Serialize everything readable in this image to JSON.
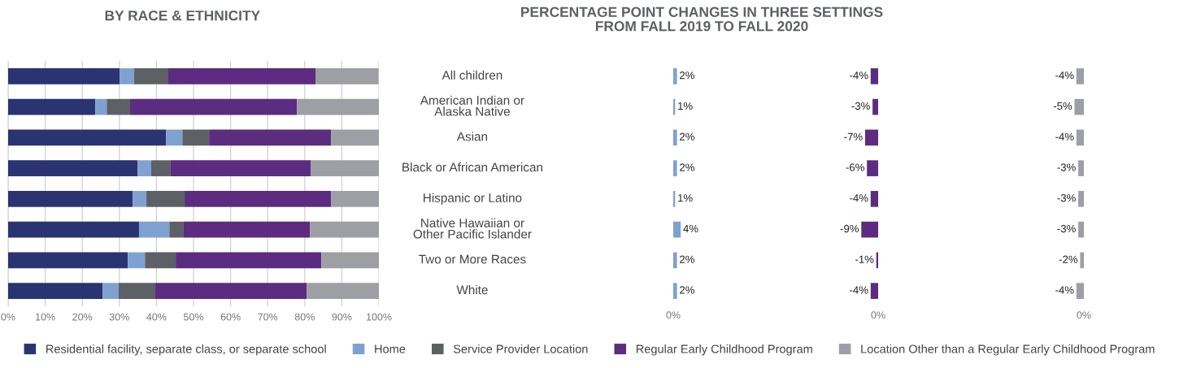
{
  "chart_data": [
    {
      "type": "bar",
      "orientation": "horizontal",
      "stacked": true,
      "title": "BY RACE & ETHNICITY",
      "categories": [
        "All children",
        "American Indian or\nAlaska Native",
        "Asian",
        "Black or African American",
        "Hispanic or Latino",
        "Native Hawaiian or\nOther Pacific Islander",
        "Two or More Races",
        "White"
      ],
      "series": [
        {
          "name": "Residential facility, separate class, or separate school",
          "color": "#2a3472",
          "values": [
            30.1,
            23.5,
            42.6,
            34.9,
            33.6,
            35.3,
            32.3,
            25.5
          ]
        },
        {
          "name": "Home",
          "color": "#7fa1d1",
          "values": [
            3.9,
            3.1,
            4.4,
            3.7,
            3.7,
            8.2,
            4.6,
            4.3
          ]
        },
        {
          "name": "Service Provider Location",
          "color": "#5d6064",
          "values": [
            9.2,
            6.3,
            7.2,
            5.1,
            10.3,
            3.7,
            8.3,
            9.9
          ]
        },
        {
          "name": "Regular Early Childhood Program",
          "color": "#5b2c7f",
          "values": [
            39.7,
            45.0,
            32.9,
            37.9,
            39.5,
            34.2,
            39.3,
            40.8
          ]
        },
        {
          "name": "Location Other than a Regular Early Childhood Program",
          "color": "#9d9fa5",
          "values": [
            17.0,
            22.1,
            12.9,
            18.4,
            12.9,
            18.6,
            15.5,
            19.5
          ]
        }
      ],
      "xlim": [
        0,
        100
      ],
      "xticks": [
        {
          "value": 0,
          "label": "0%"
        },
        {
          "value": 10,
          "label": "10%"
        },
        {
          "value": 20,
          "label": "20%"
        },
        {
          "value": 30,
          "label": "30%"
        },
        {
          "value": 40,
          "label": "40%"
        },
        {
          "value": 50,
          "label": "50%"
        },
        {
          "value": 60,
          "label": "60%"
        },
        {
          "value": 70,
          "label": "70%"
        },
        {
          "value": 80,
          "label": "80%"
        },
        {
          "value": 90,
          "label": "90%"
        },
        {
          "value": 100,
          "label": "100%"
        }
      ],
      "grid": "x",
      "legend": "bottom"
    },
    {
      "type": "bar",
      "orientation": "horizontal",
      "title": "PERCENTAGE POINT CHANGES IN THREE SETTINGS\nFROM FALL 2019 TO FALL 2020",
      "values": [
        2,
        1,
        2,
        2,
        1,
        4,
        2,
        2
      ],
      "color": "#7fa1d1",
      "value_labels": [
        "2%",
        "1%",
        "2%",
        "2%",
        "1%",
        "4%",
        "2%",
        "2%"
      ],
      "annotations": [
        "0%"
      ]
    },
    {
      "type": "bar",
      "orientation": "horizontal",
      "values": [
        -4,
        -3,
        -7,
        -6,
        -4,
        -9,
        -1,
        -4
      ],
      "color": "#5b2c7f",
      "value_labels": [
        "-4%",
        "-3%",
        "-7%",
        "-6%",
        "-4%",
        "-9%",
        "-1%",
        "-4%"
      ],
      "annotations": [
        "0%"
      ]
    },
    {
      "type": "bar",
      "orientation": "horizontal",
      "values": [
        -4,
        -5,
        -4,
        -3,
        -3,
        -3,
        -2,
        -4
      ],
      "color": "#9d9fa5",
      "value_labels": [
        "-4%",
        "-5%",
        "-4%",
        "-3%",
        "-3%",
        "-3%",
        "-2%",
        "-4%"
      ],
      "annotations": [
        "0%"
      ]
    }
  ]
}
